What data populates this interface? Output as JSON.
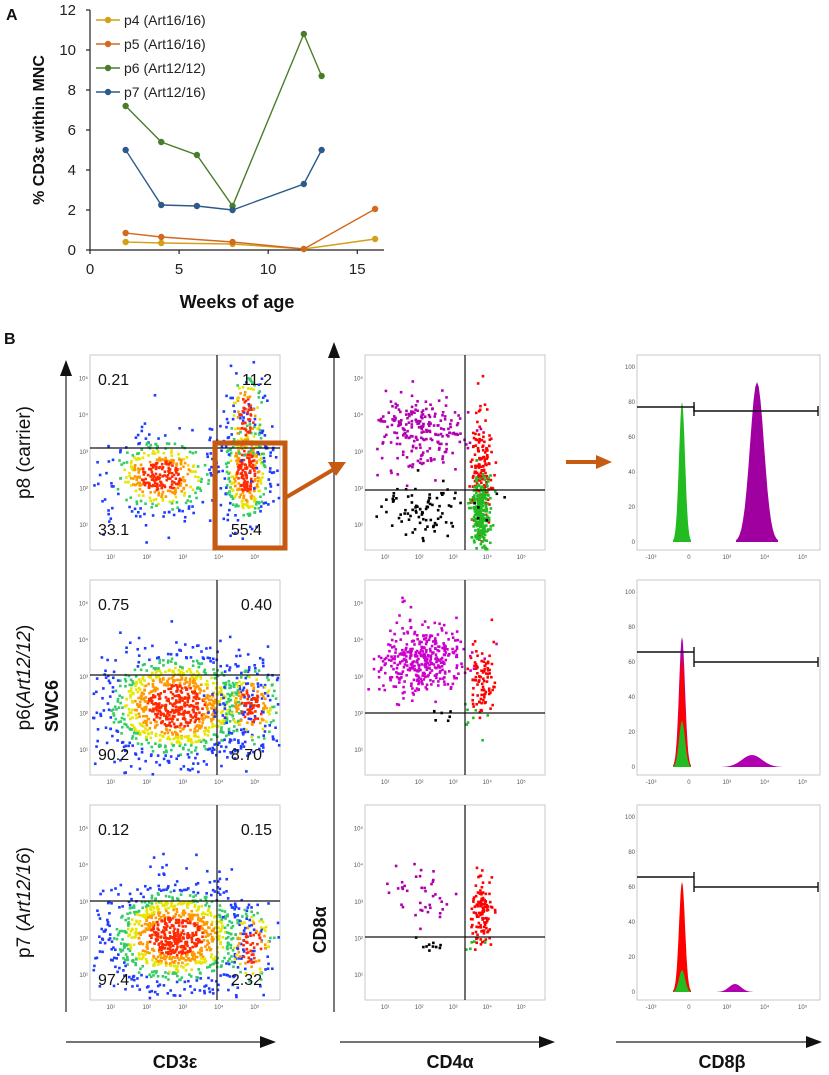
{
  "panel_a": {
    "label": "A",
    "chart_data": {
      "type": "line",
      "xlabel": "Weeks of age",
      "ylabel": "% CD3ε within MNC",
      "xlim": [
        0,
        16.5
      ],
      "ylim": [
        0,
        12
      ],
      "xticks": [
        0,
        5,
        10,
        15
      ],
      "yticks": [
        0,
        2,
        4,
        6,
        8,
        10,
        12
      ],
      "series": [
        {
          "name": "p4  (Art16/16)",
          "color": "#d4a017",
          "x": [
            2,
            4,
            8,
            12,
            16
          ],
          "y": [
            0.4,
            0.35,
            0.3,
            0.05,
            0.55
          ]
        },
        {
          "name": "p5 (Art16/16)",
          "color": "#d2691e",
          "x": [
            2,
            4,
            8,
            12,
            16
          ],
          "y": [
            0.85,
            0.65,
            0.4,
            0.05,
            2.05
          ]
        },
        {
          "name": "p6  (Art12/12)",
          "color": "#4a7d2a",
          "x": [
            2,
            4,
            6,
            8,
            12,
            13
          ],
          "y": [
            7.2,
            5.4,
            4.75,
            2.2,
            10.8,
            8.7
          ]
        },
        {
          "name": "p7 (Art12/16)",
          "color": "#2c5b8a",
          "x": [
            2,
            4,
            6,
            8,
            12,
            13
          ],
          "y": [
            5.0,
            2.25,
            2.2,
            2.0,
            3.3,
            5.0
          ]
        }
      ]
    }
  },
  "panel_b": {
    "label": "B",
    "axis_labels": {
      "col1_x": "CD3ε",
      "col1_y": "SWC6",
      "col2_x": "CD4α",
      "col2_y": "CD8α",
      "col3_x": "CD8β"
    },
    "log_ticks": [
      "10¹",
      "10²",
      "10³",
      "10⁴",
      "10⁵"
    ],
    "hist_y_ticks": [
      "0",
      "20",
      "40",
      "60",
      "80",
      "100"
    ],
    "hist_x_ticks": [
      "-10³",
      "0",
      "10³",
      "10⁴",
      "10⁵"
    ],
    "rows": [
      {
        "label": "p8 (carrier)",
        "label_plain": "p8 (carrier)",
        "q_tl": "0.21",
        "q_tr": "11.2",
        "q_bl": "33.1",
        "q_br": "55.4"
      },
      {
        "label_pre": "p6(",
        "label_ital": "Art12/12",
        "label_post": ")",
        "q_tl": "0.75",
        "q_tr": "0.40",
        "q_bl": "90.2",
        "q_br": "8.70"
      },
      {
        "label_pre": "p7 (",
        "label_ital": "Art12/16",
        "label_post": ")",
        "q_tl": "0.12",
        "q_tr": "0.15",
        "q_bl": "97.4",
        "q_br": "2.32"
      }
    ]
  }
}
